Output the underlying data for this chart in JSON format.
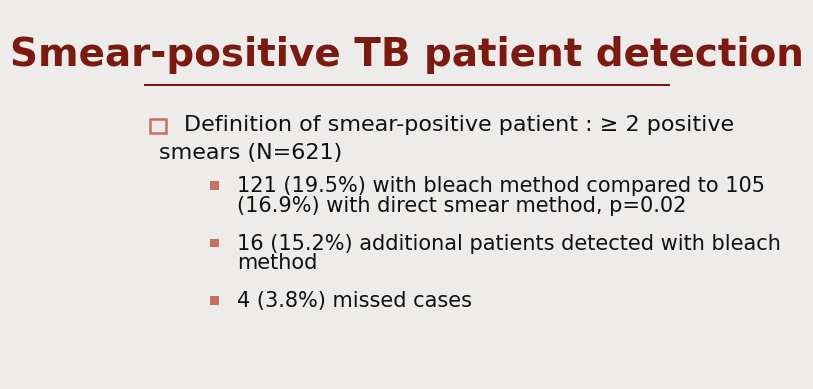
{
  "title": "Smear-positive TB patient detection",
  "title_color": "#7B1A10",
  "title_fontsize": 28,
  "bg_color": "#EEECEA",
  "line_color": "#7B1A10",
  "bullet_color": "#C87060",
  "main_text_fontsize": 16,
  "sub_text_fontsize": 15,
  "text_color": "#111111",
  "main_line1": "Definition of smear-positive patient : ≥ 2 positive",
  "main_line2": "smears (N=621)",
  "sub_bullet_lines": [
    [
      "121 (19.5%) with bleach method compared to 105",
      "(16.9%) with direct smear method, p=0.02"
    ],
    [
      "16 (15.2%) additional patients detected with bleach",
      "method"
    ],
    [
      "4 (3.8%) missed cases"
    ]
  ]
}
